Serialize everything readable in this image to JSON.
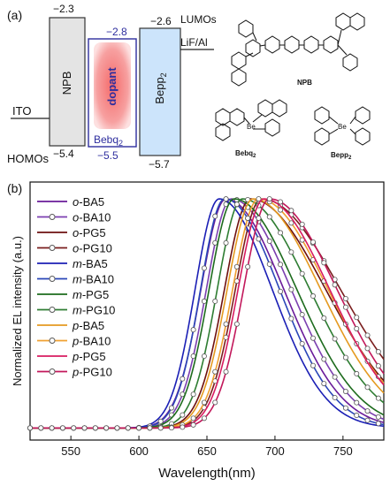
{
  "panel_a": {
    "label": "(a)",
    "lumos_label": "LUMOs",
    "homos_label": "HOMOs",
    "ito_label": "ITO",
    "cathode_label": "LiF/Al",
    "layers": [
      {
        "name": "NPB",
        "lumo": "−2.3",
        "homo": "−5.4",
        "fill": "#e4e4e4",
        "stroke": "#333333"
      },
      {
        "name": "Bebq",
        "name_sub": "2",
        "lumo": "−2.8",
        "homo": "−5.5",
        "fill": "#ffffff",
        "stroke": "#2e2e9e",
        "dopant": "dopant"
      },
      {
        "name": "Bepp",
        "name_sub": "2",
        "lumo": "−2.6",
        "homo": "−5.7",
        "fill": "#cce4fb",
        "stroke": "#333333"
      }
    ],
    "structures": [
      {
        "name": "NPB"
      },
      {
        "name": "Bebq",
        "name_sub": "2"
      },
      {
        "name": "Bepp",
        "name_sub": "2"
      }
    ]
  },
  "chart_data": {
    "type": "line",
    "panel_label": "(b)",
    "xlabel": "Wavelength(nm)",
    "ylabel": "Normalized EL intensity (a.u.)",
    "xlim": [
      520,
      780
    ],
    "ylim": [
      0,
      1.07
    ],
    "x_ticks": [
      550,
      600,
      650,
      700,
      750
    ],
    "grid": false,
    "legend_position": "top-left",
    "series": [
      {
        "prefix": "o",
        "name": "-BA5",
        "color": "#6a1b9a",
        "marker": false,
        "peak": 664,
        "left_width": 26,
        "right_width": 60
      },
      {
        "prefix": "o",
        "name": "-BA10",
        "color": "#7b3fb0",
        "marker": true,
        "peak": 668,
        "left_width": 26,
        "right_width": 62
      },
      {
        "prefix": "o",
        "name": "-PG5",
        "color": "#6d1010",
        "marker": false,
        "peak": 682,
        "left_width": 27,
        "right_width": 78
      },
      {
        "prefix": "o",
        "name": "-PG10",
        "color": "#7a1e1e",
        "marker": true,
        "peak": 690,
        "left_width": 27,
        "right_width": 82
      },
      {
        "prefix": "m",
        "name": "-BA5",
        "color": "#1b1fb5",
        "marker": false,
        "peak": 659,
        "left_width": 25,
        "right_width": 55
      },
      {
        "prefix": "m",
        "name": "-BA10",
        "color": "#2a46b8",
        "marker": true,
        "peak": 663,
        "left_width": 25,
        "right_width": 57
      },
      {
        "prefix": "m",
        "name": "-PG5",
        "color": "#1d6b1d",
        "marker": false,
        "peak": 670,
        "left_width": 26,
        "right_width": 65
      },
      {
        "prefix": "m",
        "name": "-PG10",
        "color": "#2e7d32",
        "marker": true,
        "peak": 676,
        "left_width": 26,
        "right_width": 70
      },
      {
        "prefix": "p",
        "name": "-BA5",
        "color": "#e59a20",
        "marker": false,
        "peak": 684,
        "left_width": 27,
        "right_width": 70
      },
      {
        "prefix": "p",
        "name": "-BA10",
        "color": "#f0a030",
        "marker": true,
        "peak": 688,
        "left_width": 27,
        "right_width": 72
      },
      {
        "prefix": "p",
        "name": "-PG5",
        "color": "#d81b60",
        "marker": false,
        "peak": 692,
        "left_width": 27,
        "right_width": 68
      },
      {
        "prefix": "p",
        "name": "-PG10",
        "color": "#c2185b",
        "marker": true,
        "peak": 696,
        "left_width": 27,
        "right_width": 70
      }
    ]
  }
}
